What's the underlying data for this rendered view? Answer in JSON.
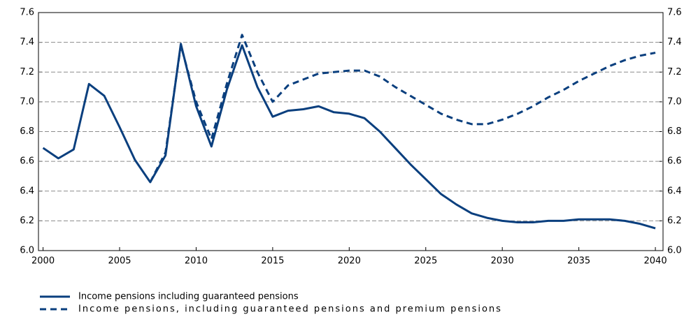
{
  "chart_data": {
    "type": "line",
    "x": [
      2000,
      2001,
      2002,
      2003,
      2004,
      2005,
      2006,
      2007,
      2008,
      2009,
      2010,
      2011,
      2012,
      2013,
      2014,
      2015,
      2016,
      2017,
      2018,
      2019,
      2020,
      2021,
      2022,
      2023,
      2024,
      2025,
      2026,
      2027,
      2028,
      2029,
      2030,
      2031,
      2032,
      2033,
      2034,
      2035,
      2036,
      2037,
      2038,
      2039,
      2040
    ],
    "series": [
      {
        "name": "Income pensions including guaranteed pensions",
        "color": "#0a3f7e",
        "dash": false,
        "values": [
          6.69,
          6.62,
          6.68,
          7.12,
          7.04,
          6.83,
          6.61,
          6.46,
          6.64,
          7.39,
          6.97,
          6.7,
          7.08,
          7.38,
          7.1,
          6.9,
          6.94,
          6.95,
          6.97,
          6.93,
          6.92,
          6.89,
          6.8,
          6.69,
          6.58,
          6.48,
          6.38,
          6.31,
          6.25,
          6.22,
          6.2,
          6.19,
          6.19,
          6.2,
          6.2,
          6.21,
          6.21,
          6.21,
          6.2,
          6.18,
          6.15
        ]
      },
      {
        "name": "Income pensions, including guaranteed pensions and premium pensions",
        "color": "#0a3f7e",
        "dash": true,
        "values": [
          null,
          null,
          null,
          null,
          null,
          null,
          null,
          6.46,
          6.66,
          7.38,
          7.0,
          6.75,
          7.12,
          7.45,
          7.2,
          7.0,
          7.11,
          7.15,
          7.19,
          7.2,
          7.21,
          7.21,
          7.17,
          7.1,
          7.04,
          6.98,
          6.92,
          6.88,
          6.85,
          6.85,
          6.88,
          6.92,
          6.97,
          7.03,
          7.08,
          7.14,
          7.19,
          7.24,
          7.28,
          7.31,
          7.33
        ]
      }
    ],
    "xlim": [
      1999.7,
      2040.5
    ],
    "xticks": [
      2000,
      2005,
      2010,
      2015,
      2020,
      2025,
      2030,
      2035,
      2040
    ],
    "ylim": [
      6.0,
      7.6
    ],
    "yticks": [
      {
        "value": 6.0,
        "label": "6.0"
      },
      {
        "value": 6.2,
        "label": "6.2"
      },
      {
        "value": 6.4,
        "label": "6.4"
      },
      {
        "value": 6.6,
        "label": "6.6"
      },
      {
        "value": 6.8,
        "label": "6.8"
      },
      {
        "value": 7.0,
        "label": "7.0"
      },
      {
        "value": 7.2,
        "label": "7.2"
      },
      {
        "value": 7.4,
        "label": "7.4"
      },
      {
        "value": 7.6,
        "label": "7.6"
      }
    ],
    "grid": true
  }
}
